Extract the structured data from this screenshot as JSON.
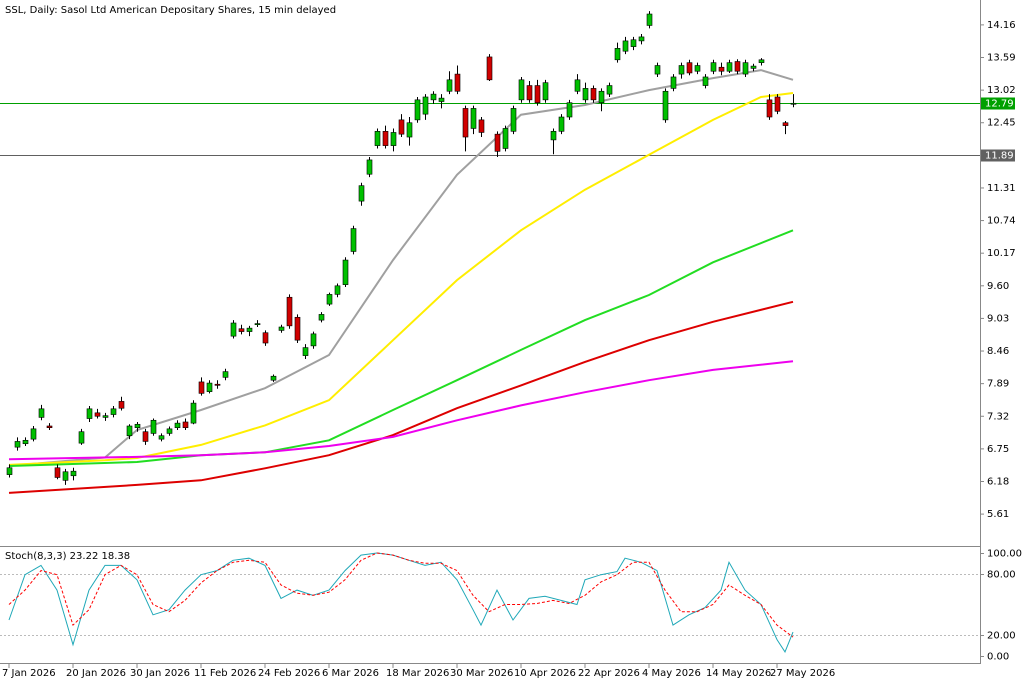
{
  "chart_data": [
    {
      "type": "candlestick",
      "title": "SSL, Daily:  Sasol Ltd American Depositary Shares, 15 min delayed",
      "categories": [
        "7 Jan 2026",
        null,
        null,
        null,
        null,
        null,
        null,
        null,
        "20 Jan 2026",
        null,
        null,
        null,
        null,
        null,
        null,
        null,
        "30 Jan 2026",
        null,
        null,
        null,
        null,
        null,
        null,
        null,
        "11 Feb 2026",
        null,
        null,
        null,
        null,
        null,
        null,
        null,
        "24 Feb 2026",
        null,
        null,
        null,
        null,
        null,
        null,
        null,
        "6 Mar 2026",
        null,
        null,
        null,
        null,
        null,
        null,
        null,
        "18 Mar 2026",
        null,
        null,
        null,
        null,
        null,
        null,
        null,
        "30 Mar 2026",
        null,
        null,
        null,
        null,
        null,
        null,
        null,
        "10 Apr 2026",
        null,
        null,
        null,
        null,
        null,
        null,
        null,
        "22 Apr 2026",
        null,
        null,
        null,
        null,
        null,
        null,
        null,
        "4 May 2026",
        null,
        null,
        null,
        null,
        null,
        null,
        null,
        "14 May 2026",
        null,
        null,
        null,
        null,
        null,
        null,
        null,
        "27 May 2026",
        null,
        null
      ],
      "open": [
        6.3,
        6.78,
        6.84,
        6.92,
        7.3,
        7.15,
        6.42,
        6.2,
        6.28,
        6.85,
        7.28,
        7.38,
        7.3,
        7.35,
        7.58,
        6.98,
        7.12,
        7.05,
        7.02,
        6.92,
        7.02,
        7.12,
        7.22,
        7.2,
        7.92,
        7.75,
        7.88,
        8.0,
        8.72,
        8.85,
        8.8,
        8.92,
        8.78,
        7.95,
        8.82,
        9.4,
        9.05,
        8.38,
        8.55,
        9.0,
        9.28,
        9.45,
        9.62,
        10.2,
        11.08,
        11.55,
        12.05,
        12.3,
        12.05,
        12.5,
        12.2,
        12.5,
        12.6,
        12.85,
        12.82,
        13.0,
        13.3,
        12.7,
        12.35,
        12.5,
        13.6,
        12.25,
        12.0,
        12.3,
        12.85,
        13.1,
        13.1,
        12.85,
        12.15,
        12.3,
        12.55,
        13.0,
        12.85,
        13.05,
        12.8,
        12.95,
        13.55,
        13.7,
        13.78,
        13.88,
        14.15,
        13.3,
        12.5,
        13.05,
        13.3,
        13.5,
        13.35,
        13.1,
        13.35,
        13.42,
        13.35,
        13.52,
        13.3,
        13.4,
        13.5,
        12.85,
        12.9,
        12.45,
        12.78
      ],
      "high": [
        6.48,
        6.95,
        6.95,
        7.15,
        7.52,
        7.2,
        6.48,
        6.4,
        6.42,
        7.1,
        7.5,
        7.45,
        7.38,
        7.5,
        7.66,
        7.18,
        7.22,
        7.1,
        7.28,
        7.02,
        7.14,
        7.25,
        7.28,
        7.6,
        8.0,
        7.95,
        7.95,
        8.15,
        9.0,
        8.92,
        8.9,
        9.0,
        8.82,
        8.05,
        8.92,
        9.45,
        9.1,
        8.58,
        8.8,
        9.14,
        9.48,
        9.64,
        10.1,
        10.65,
        11.4,
        11.85,
        12.35,
        12.4,
        12.35,
        12.6,
        12.55,
        12.9,
        12.95,
        13.0,
        12.95,
        13.35,
        13.45,
        12.75,
        12.75,
        12.55,
        13.65,
        12.3,
        12.4,
        12.75,
        13.25,
        13.18,
        13.2,
        13.2,
        12.35,
        12.6,
        12.85,
        13.3,
        13.15,
        13.1,
        13.05,
        13.15,
        13.85,
        13.95,
        13.95,
        14.0,
        14.4,
        13.5,
        13.05,
        13.3,
        13.5,
        13.55,
        13.5,
        13.3,
        13.55,
        13.5,
        13.55,
        13.56,
        13.55,
        13.48,
        13.58,
        12.95,
        12.95,
        12.48,
        12.95
      ],
      "low": [
        6.25,
        6.72,
        6.8,
        6.88,
        7.25,
        7.08,
        6.22,
        6.12,
        6.2,
        6.82,
        7.22,
        7.28,
        7.24,
        7.3,
        7.42,
        6.92,
        7.05,
        6.82,
        6.98,
        6.88,
        6.98,
        7.08,
        7.08,
        7.18,
        7.68,
        7.72,
        7.8,
        7.95,
        8.68,
        8.75,
        8.72,
        8.88,
        8.55,
        7.92,
        8.78,
        8.85,
        8.6,
        8.32,
        8.5,
        8.96,
        9.25,
        9.4,
        9.58,
        10.15,
        11.0,
        11.5,
        12.0,
        12.0,
        11.95,
        12.2,
        12.05,
        12.45,
        12.5,
        12.78,
        12.7,
        12.95,
        12.95,
        11.95,
        12.25,
        12.2,
        13.18,
        11.85,
        11.95,
        12.25,
        12.8,
        12.8,
        12.75,
        12.8,
        11.9,
        12.25,
        12.5,
        12.95,
        12.8,
        12.8,
        12.65,
        12.9,
        13.5,
        13.65,
        13.72,
        13.82,
        14.1,
        13.25,
        12.45,
        13.0,
        13.22,
        13.28,
        13.3,
        13.05,
        13.3,
        13.28,
        13.32,
        13.3,
        13.25,
        13.35,
        13.45,
        12.5,
        12.6,
        12.25,
        12.72
      ],
      "close": [
        6.42,
        6.88,
        6.9,
        7.1,
        7.45,
        7.12,
        6.25,
        6.35,
        6.36,
        7.05,
        7.45,
        7.32,
        7.33,
        7.45,
        7.46,
        7.15,
        7.18,
        6.88,
        7.25,
        6.98,
        7.1,
        7.2,
        7.12,
        7.55,
        7.72,
        7.9,
        7.86,
        8.1,
        8.95,
        8.8,
        8.86,
        8.94,
        8.6,
        8.02,
        8.88,
        8.9,
        8.65,
        8.52,
        8.76,
        9.1,
        9.45,
        9.6,
        10.05,
        10.6,
        11.35,
        11.8,
        12.3,
        12.05,
        12.28,
        12.25,
        12.45,
        12.85,
        12.9,
        12.95,
        12.88,
        13.2,
        13.0,
        12.2,
        12.7,
        12.28,
        13.2,
        11.95,
        12.35,
        12.7,
        13.2,
        12.85,
        12.8,
        13.15,
        12.3,
        12.55,
        12.8,
        13.2,
        13.05,
        12.85,
        13.0,
        13.1,
        13.75,
        13.88,
        13.9,
        13.95,
        14.35,
        13.45,
        13.0,
        13.25,
        13.45,
        13.32,
        13.45,
        13.25,
        13.5,
        13.35,
        13.5,
        13.35,
        13.5,
        13.44,
        13.55,
        12.55,
        12.65,
        12.4,
        12.79
      ],
      "up_color": "#00c000",
      "down_color": "#d00000",
      "ylim": [
        5.07,
        14.56
      ],
      "yticks": [
        14.16,
        13.59,
        13.02,
        12.45,
        11.31,
        10.74,
        10.17,
        {
          "value": 9.6,
          "label": "9.60"
        },
        9.03,
        8.46,
        7.89,
        7.32,
        6.75,
        6.18,
        5.61
      ],
      "levels": [
        {
          "value": 12.79,
          "color": "#00a000"
        },
        {
          "value": 11.89,
          "color": "#606060"
        }
      ],
      "series": [
        {
          "color": "#a0a0a0",
          "x": [
            0,
            12,
            16,
            24,
            32,
            40,
            48,
            56,
            64,
            72,
            80,
            88,
            94,
            98
          ],
          "values": [
            6.45,
            6.6,
            7.08,
            7.43,
            7.81,
            8.39,
            10.05,
            11.54,
            12.59,
            12.76,
            13.02,
            13.23,
            13.37,
            13.2
          ]
        },
        {
          "color": "#ffee00",
          "x": [
            0,
            12,
            16,
            24,
            32,
            40,
            48,
            56,
            64,
            72,
            80,
            88,
            94,
            98
          ],
          "values": [
            6.47,
            6.55,
            6.59,
            6.82,
            7.16,
            7.6,
            8.65,
            9.7,
            10.57,
            11.28,
            11.89,
            12.5,
            12.9,
            12.97
          ]
        },
        {
          "color": "#22dd22",
          "x": [
            0,
            16,
            24,
            32,
            40,
            48,
            56,
            64,
            72,
            80,
            88,
            98
          ],
          "values": [
            6.45,
            6.52,
            6.64,
            6.69,
            6.9,
            7.43,
            7.95,
            8.48,
            9.0,
            9.44,
            10.01,
            10.57
          ]
        },
        {
          "color": "#dd0000",
          "x": [
            0,
            16,
            24,
            32,
            40,
            48,
            56,
            64,
            72,
            80,
            88,
            98
          ],
          "values": [
            5.98,
            6.12,
            6.2,
            6.41,
            6.64,
            6.99,
            7.46,
            7.86,
            8.27,
            8.65,
            8.97,
            9.32
          ]
        },
        {
          "color": "#ee00ee",
          "x": [
            0,
            16,
            24,
            32,
            40,
            48,
            56,
            64,
            72,
            80,
            88,
            98
          ],
          "values": [
            6.57,
            6.61,
            6.64,
            6.69,
            6.8,
            6.96,
            7.25,
            7.51,
            7.74,
            7.95,
            8.13,
            8.28
          ]
        }
      ]
    },
    {
      "type": "line",
      "title": "Stoch(8,3,3)",
      "ylim": [
        -5.8,
        104.9
      ],
      "yticks": [
        {
          "value": 100,
          "label": "100.00"
        },
        {
          "value": 80,
          "label": "80.00"
        },
        {
          "value": 20,
          "label": "20.00"
        },
        {
          "value": 0,
          "label": "0.00"
        }
      ],
      "series": [
        {
          "color": "#1fa8b8",
          "dashed": false,
          "x": [
            0,
            2,
            4,
            6,
            8,
            10,
            12,
            14,
            16,
            18,
            20,
            22,
            24,
            26,
            28,
            30,
            32,
            34,
            36,
            38,
            40,
            42,
            44,
            46,
            48,
            50,
            52,
            54,
            56,
            58,
            59,
            61,
            63,
            65,
            67,
            69,
            71,
            72,
            74,
            76,
            77,
            79,
            81,
            83,
            85,
            87,
            89,
            90,
            92,
            94,
            96,
            97,
            98
          ],
          "values": [
            35,
            79,
            88,
            64,
            11,
            64,
            88,
            88,
            74,
            40,
            45,
            64,
            79,
            83,
            93,
            95,
            88,
            56,
            64,
            59,
            64,
            83,
            98,
            100,
            98,
            93,
            88,
            91,
            74,
            45,
            30,
            64,
            35,
            56,
            58,
            54,
            50,
            74,
            79,
            82,
            95,
            91,
            83,
            30,
            40,
            47,
            64,
            91,
            64,
            50,
            16,
            4,
            23.22
          ]
        },
        {
          "color": "#ff0000",
          "dashed": true,
          "x": [
            0,
            2,
            4,
            6,
            8,
            10,
            12,
            14,
            16,
            18,
            20,
            22,
            24,
            26,
            28,
            30,
            32,
            34,
            36,
            38,
            40,
            42,
            44,
            46,
            48,
            50,
            52,
            54,
            56,
            58,
            60,
            62,
            64,
            66,
            68,
            70,
            72,
            74,
            76,
            78,
            80,
            82,
            84,
            86,
            88,
            90,
            92,
            94,
            96,
            98
          ],
          "values": [
            50,
            64,
            83,
            79,
            30,
            45,
            79,
            88,
            79,
            50,
            43,
            54,
            71,
            83,
            91,
            93,
            91,
            69,
            61,
            59,
            62,
            74,
            93,
            100,
            98,
            93,
            90,
            90,
            83,
            59,
            43,
            50,
            50,
            51,
            54,
            51,
            59,
            72,
            79,
            91,
            91,
            64,
            43,
            43,
            50,
            69,
            59,
            50,
            30,
            18.38
          ]
        }
      ]
    }
  ]
}
